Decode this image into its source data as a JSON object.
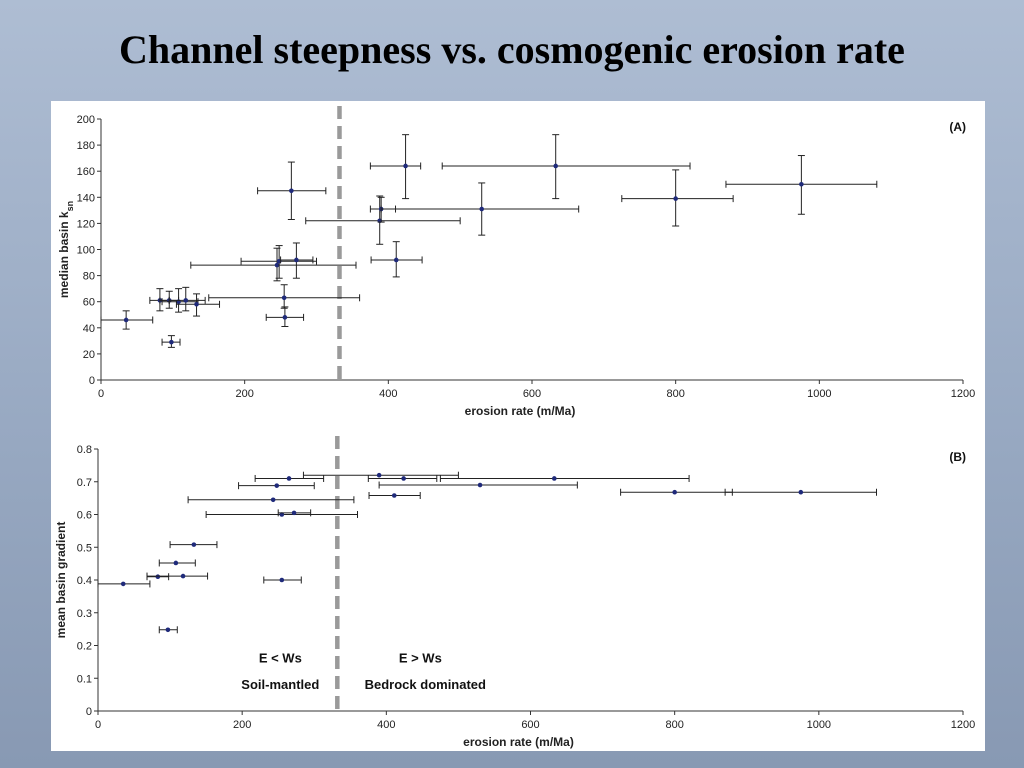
{
  "title": "Channel steepness vs. cosmogenic erosion rate",
  "colors": {
    "point": "#1f2a7a",
    "errorbar": "#222222",
    "divider": "#9a9a9a"
  },
  "chart_data": [
    {
      "type": "scatter",
      "panel_label": "(A)",
      "xlabel": "erosion rate (m/Ma)",
      "ylabel": "median basin k",
      "ylabel_sub": "sn",
      "xlim": [
        0,
        1200
      ],
      "ylim": [
        0,
        200
      ],
      "xticks": [
        "0",
        "200",
        "400",
        "600",
        "800",
        "1000",
        "1200"
      ],
      "yticks": [
        "0",
        "20",
        "40",
        "60",
        "80",
        "100",
        "120",
        "140",
        "160",
        "180",
        "200"
      ],
      "divider_x": 332,
      "points": [
        {
          "x": 35,
          "y": 46,
          "xerr": [
            0,
            72
          ],
          "yerr": [
            39,
            53
          ]
        },
        {
          "x": 98,
          "y": 29,
          "xerr": [
            85,
            110
          ],
          "yerr": [
            25,
            34
          ]
        },
        {
          "x": 82,
          "y": 61,
          "xerr": [
            68,
            95
          ],
          "yerr": [
            53,
            70
          ]
        },
        {
          "x": 95,
          "y": 61,
          "xerr": [
            82,
            108
          ],
          "yerr": [
            55,
            68
          ]
        },
        {
          "x": 108,
          "y": 60,
          "xerr": [
            85,
            135
          ],
          "yerr": [
            52,
            70
          ]
        },
        {
          "x": 118,
          "y": 61,
          "xerr": [
            95,
            145
          ],
          "yerr": [
            53,
            71
          ]
        },
        {
          "x": 133,
          "y": 58,
          "xerr": [
            105,
            165
          ],
          "yerr": [
            49,
            66
          ]
        },
        {
          "x": 255,
          "y": 63,
          "xerr": [
            150,
            360
          ],
          "yerr": [
            55,
            73
          ]
        },
        {
          "x": 256,
          "y": 48,
          "xerr": [
            230,
            282
          ],
          "yerr": [
            41,
            56
          ]
        },
        {
          "x": 245,
          "y": 88,
          "xerr": [
            125,
            355
          ],
          "yerr": [
            76,
            101
          ]
        },
        {
          "x": 248,
          "y": 91,
          "xerr": [
            195,
            300
          ],
          "yerr": [
            78,
            103
          ]
        },
        {
          "x": 272,
          "y": 92,
          "xerr": [
            250,
            295
          ],
          "yerr": [
            78,
            105
          ]
        },
        {
          "x": 265,
          "y": 145,
          "xerr": [
            218,
            313
          ],
          "yerr": [
            123,
            167
          ]
        },
        {
          "x": 388,
          "y": 122,
          "xerr": [
            285,
            500
          ],
          "yerr": [
            104,
            141
          ]
        },
        {
          "x": 390,
          "y": 131,
          "xerr": [
            375,
            410
          ],
          "yerr": [
            121,
            140
          ]
        },
        {
          "x": 411,
          "y": 92,
          "xerr": [
            376,
            447
          ],
          "yerr": [
            79,
            106
          ]
        },
        {
          "x": 424,
          "y": 164,
          "xerr": [
            375,
            445
          ],
          "yerr": [
            139,
            188
          ]
        },
        {
          "x": 530,
          "y": 131,
          "xerr": [
            390,
            665
          ],
          "yerr": [
            111,
            151
          ]
        },
        {
          "x": 633,
          "y": 164,
          "xerr": [
            475,
            820
          ],
          "yerr": [
            139,
            188
          ]
        },
        {
          "x": 800,
          "y": 139,
          "xerr": [
            725,
            880
          ],
          "yerr": [
            118,
            161
          ]
        },
        {
          "x": 975,
          "y": 150,
          "xerr": [
            870,
            1080
          ],
          "yerr": [
            127,
            172
          ]
        }
      ]
    },
    {
      "type": "scatter",
      "panel_label": "(B)",
      "xlabel": "erosion rate (m/Ma)",
      "ylabel": "mean basin gradient",
      "xlim": [
        0,
        1200
      ],
      "ylim": [
        0,
        0.8
      ],
      "xticks": [
        "0",
        "200",
        "400",
        "600",
        "800",
        "1000",
        "1200"
      ],
      "yticks": [
        "0",
        "0.1",
        "0.2",
        "0.3",
        "0.4",
        "0.5",
        "0.6",
        "0.7",
        "0.8"
      ],
      "divider_x": 332,
      "region_labels": {
        "left_top": "E < Ws",
        "left_bottom": "Soil-mantled",
        "right_top": "E > Ws",
        "right_bottom": "Bedrock dominated"
      },
      "points": [
        {
          "x": 35,
          "y": 0.388,
          "xerr": [
            0,
            72
          ]
        },
        {
          "x": 97,
          "y": 0.248,
          "xerr": [
            85,
            110
          ]
        },
        {
          "x": 83,
          "y": 0.41,
          "xerr": [
            68,
            98
          ]
        },
        {
          "x": 118,
          "y": 0.412,
          "xerr": [
            68,
            152
          ]
        },
        {
          "x": 108,
          "y": 0.452,
          "xerr": [
            85,
            135
          ]
        },
        {
          "x": 133,
          "y": 0.508,
          "xerr": [
            100,
            165
          ]
        },
        {
          "x": 255,
          "y": 0.4,
          "xerr": [
            230,
            282
          ]
        },
        {
          "x": 255,
          "y": 0.6,
          "xerr": [
            150,
            360
          ]
        },
        {
          "x": 272,
          "y": 0.605,
          "xerr": [
            250,
            295
          ]
        },
        {
          "x": 243,
          "y": 0.645,
          "xerr": [
            125,
            355
          ]
        },
        {
          "x": 248,
          "y": 0.688,
          "xerr": [
            195,
            300
          ]
        },
        {
          "x": 265,
          "y": 0.71,
          "xerr": [
            218,
            313
          ]
        },
        {
          "x": 390,
          "y": 0.72,
          "xerr": [
            285,
            500
          ]
        },
        {
          "x": 411,
          "y": 0.658,
          "xerr": [
            376,
            447
          ]
        },
        {
          "x": 424,
          "y": 0.71,
          "xerr": [
            375,
            470
          ]
        },
        {
          "x": 530,
          "y": 0.69,
          "xerr": [
            390,
            665
          ]
        },
        {
          "x": 633,
          "y": 0.71,
          "xerr": [
            475,
            820
          ]
        },
        {
          "x": 800,
          "y": 0.668,
          "xerr": [
            725,
            880
          ]
        },
        {
          "x": 975,
          "y": 0.668,
          "xerr": [
            870,
            1080
          ]
        }
      ]
    }
  ]
}
